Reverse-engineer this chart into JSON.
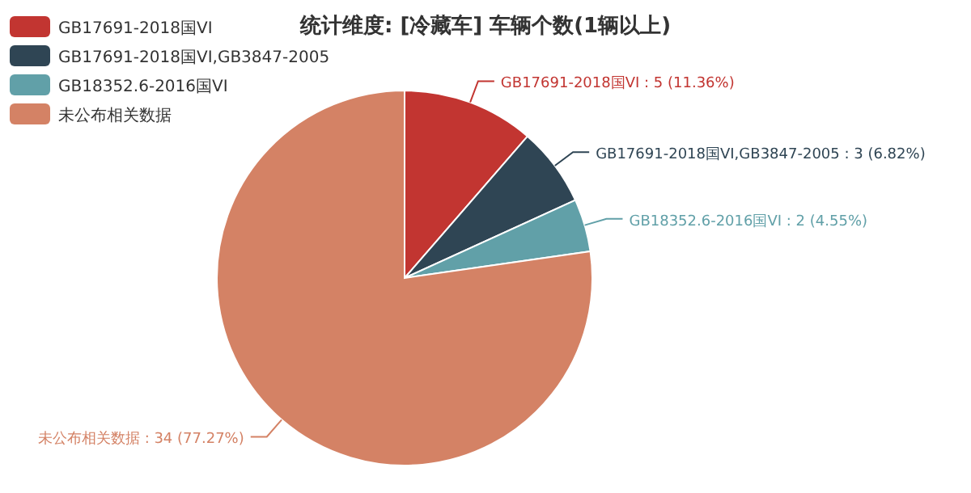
{
  "chart_data": {
    "type": "pie",
    "title": "统计维度: [冷藏车] 车辆个数(1辆以上)",
    "categories": [
      "GB17691-2018国VI",
      "GB17691-2018国VI,GB3847-2005",
      "GB18352.6-2016国VI",
      "未公布相关数据"
    ],
    "values": [
      5,
      3,
      2,
      34
    ],
    "colors": [
      "#c23531",
      "#2f4554",
      "#61a0a8",
      "#d48265"
    ],
    "value_labels": [
      "GB17691-2018国VI : 5 (11.36%)",
      "GB17691-2018国VI,GB3847-2005 : 3 (6.82%)",
      "GB18352.6-2016国VI : 2 (4.55%)",
      "未公布相关数据 : 34 (77.27%)"
    ],
    "legend": "top left"
  }
}
